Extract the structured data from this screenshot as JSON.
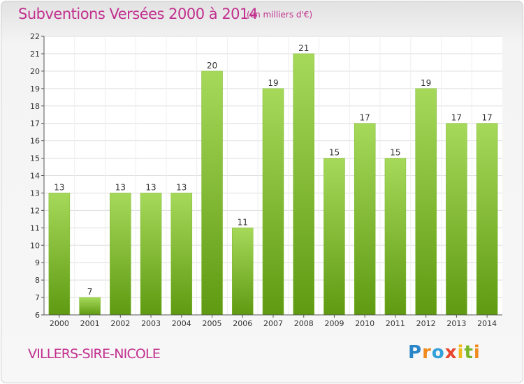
{
  "header": {
    "title": "Subventions Versées 2000 à 2014",
    "unit_note": "(en milliers d'€)"
  },
  "footer": {
    "commune": "VILLERS-SIRE-NICOLE",
    "logo_text": "Proxiti"
  },
  "colors": {
    "title": "#c2308f",
    "bar_light": "#a6d95a",
    "bar_dark": "#5f9a12",
    "grid": "#dddddd"
  },
  "chart_data": {
    "type": "bar",
    "title": "Subventions Versées 2000 à 2014",
    "xlabel": "",
    "ylabel": "",
    "categories": [
      "2000",
      "2001",
      "2002",
      "2003",
      "2004",
      "2005",
      "2006",
      "2007",
      "2008",
      "2009",
      "2010",
      "2011",
      "2012",
      "2013",
      "2014"
    ],
    "values": [
      13,
      7,
      13,
      13,
      13,
      20,
      11,
      19,
      21,
      15,
      17,
      15,
      19,
      17,
      17
    ],
    "ylim": [
      6,
      22
    ],
    "yticks": [
      6,
      7,
      8,
      9,
      10,
      11,
      12,
      13,
      14,
      15,
      16,
      17,
      18,
      19,
      20,
      21,
      22
    ],
    "grid": true,
    "legend": "none"
  }
}
